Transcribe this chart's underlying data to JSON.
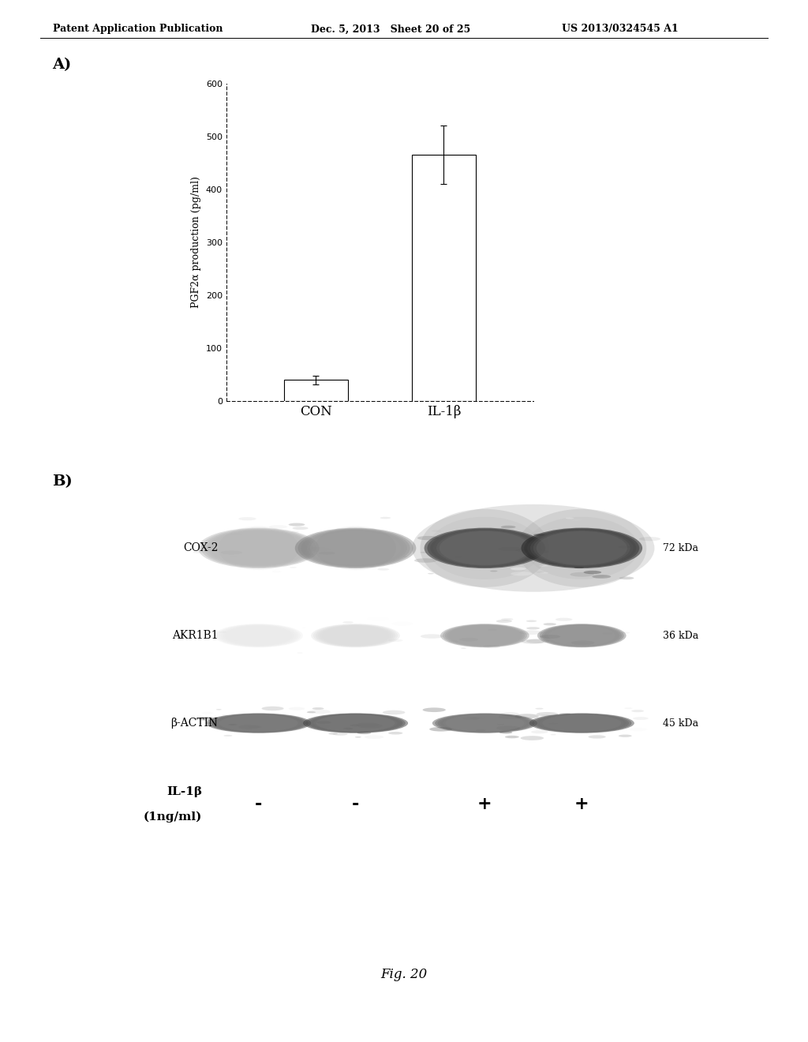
{
  "header_left": "Patent Application Publication",
  "header_mid": "Dec. 5, 2013   Sheet 20 of 25",
  "header_right": "US 2013/0324545 A1",
  "panel_a_label": "A)",
  "panel_b_label": "B)",
  "bar_categories": [
    "CON",
    "IL-1β"
  ],
  "bar_values": [
    40,
    465
  ],
  "bar_errors": [
    8,
    55
  ],
  "ylabel": "PGF2α production (pg/ml)",
  "ylim": [
    0,
    600
  ],
  "yticks": [
    0,
    100,
    200,
    300,
    400,
    500,
    600
  ],
  "bar_color": "#ffffff",
  "bar_edge_color": "#000000",
  "western_labels": [
    "COX-2",
    "AKR1B1",
    "β-ACTIN"
  ],
  "western_kda": [
    "72 kDa",
    "36 kDa",
    "45 kDa"
  ],
  "il1b_label_line1": "IL-1β",
  "il1b_label_line2": "(1ng/ml)",
  "il1b_signs": [
    "-",
    "-",
    "+",
    "+"
  ],
  "fig_label": "Fig. 20",
  "background_color": "#ffffff",
  "text_color": "#000000",
  "header_fontsize": 9,
  "axis_fontsize": 8,
  "panel_label_fontsize": 14,
  "fig_label_fontsize": 12,
  "cox2_intensities": [
    0.55,
    0.42,
    0.15,
    0.12
  ],
  "akr1b1_intensities": [
    0.8,
    0.72,
    0.45,
    0.38
  ],
  "bactin_intensities": [
    0.25,
    0.22,
    0.28,
    0.24
  ]
}
